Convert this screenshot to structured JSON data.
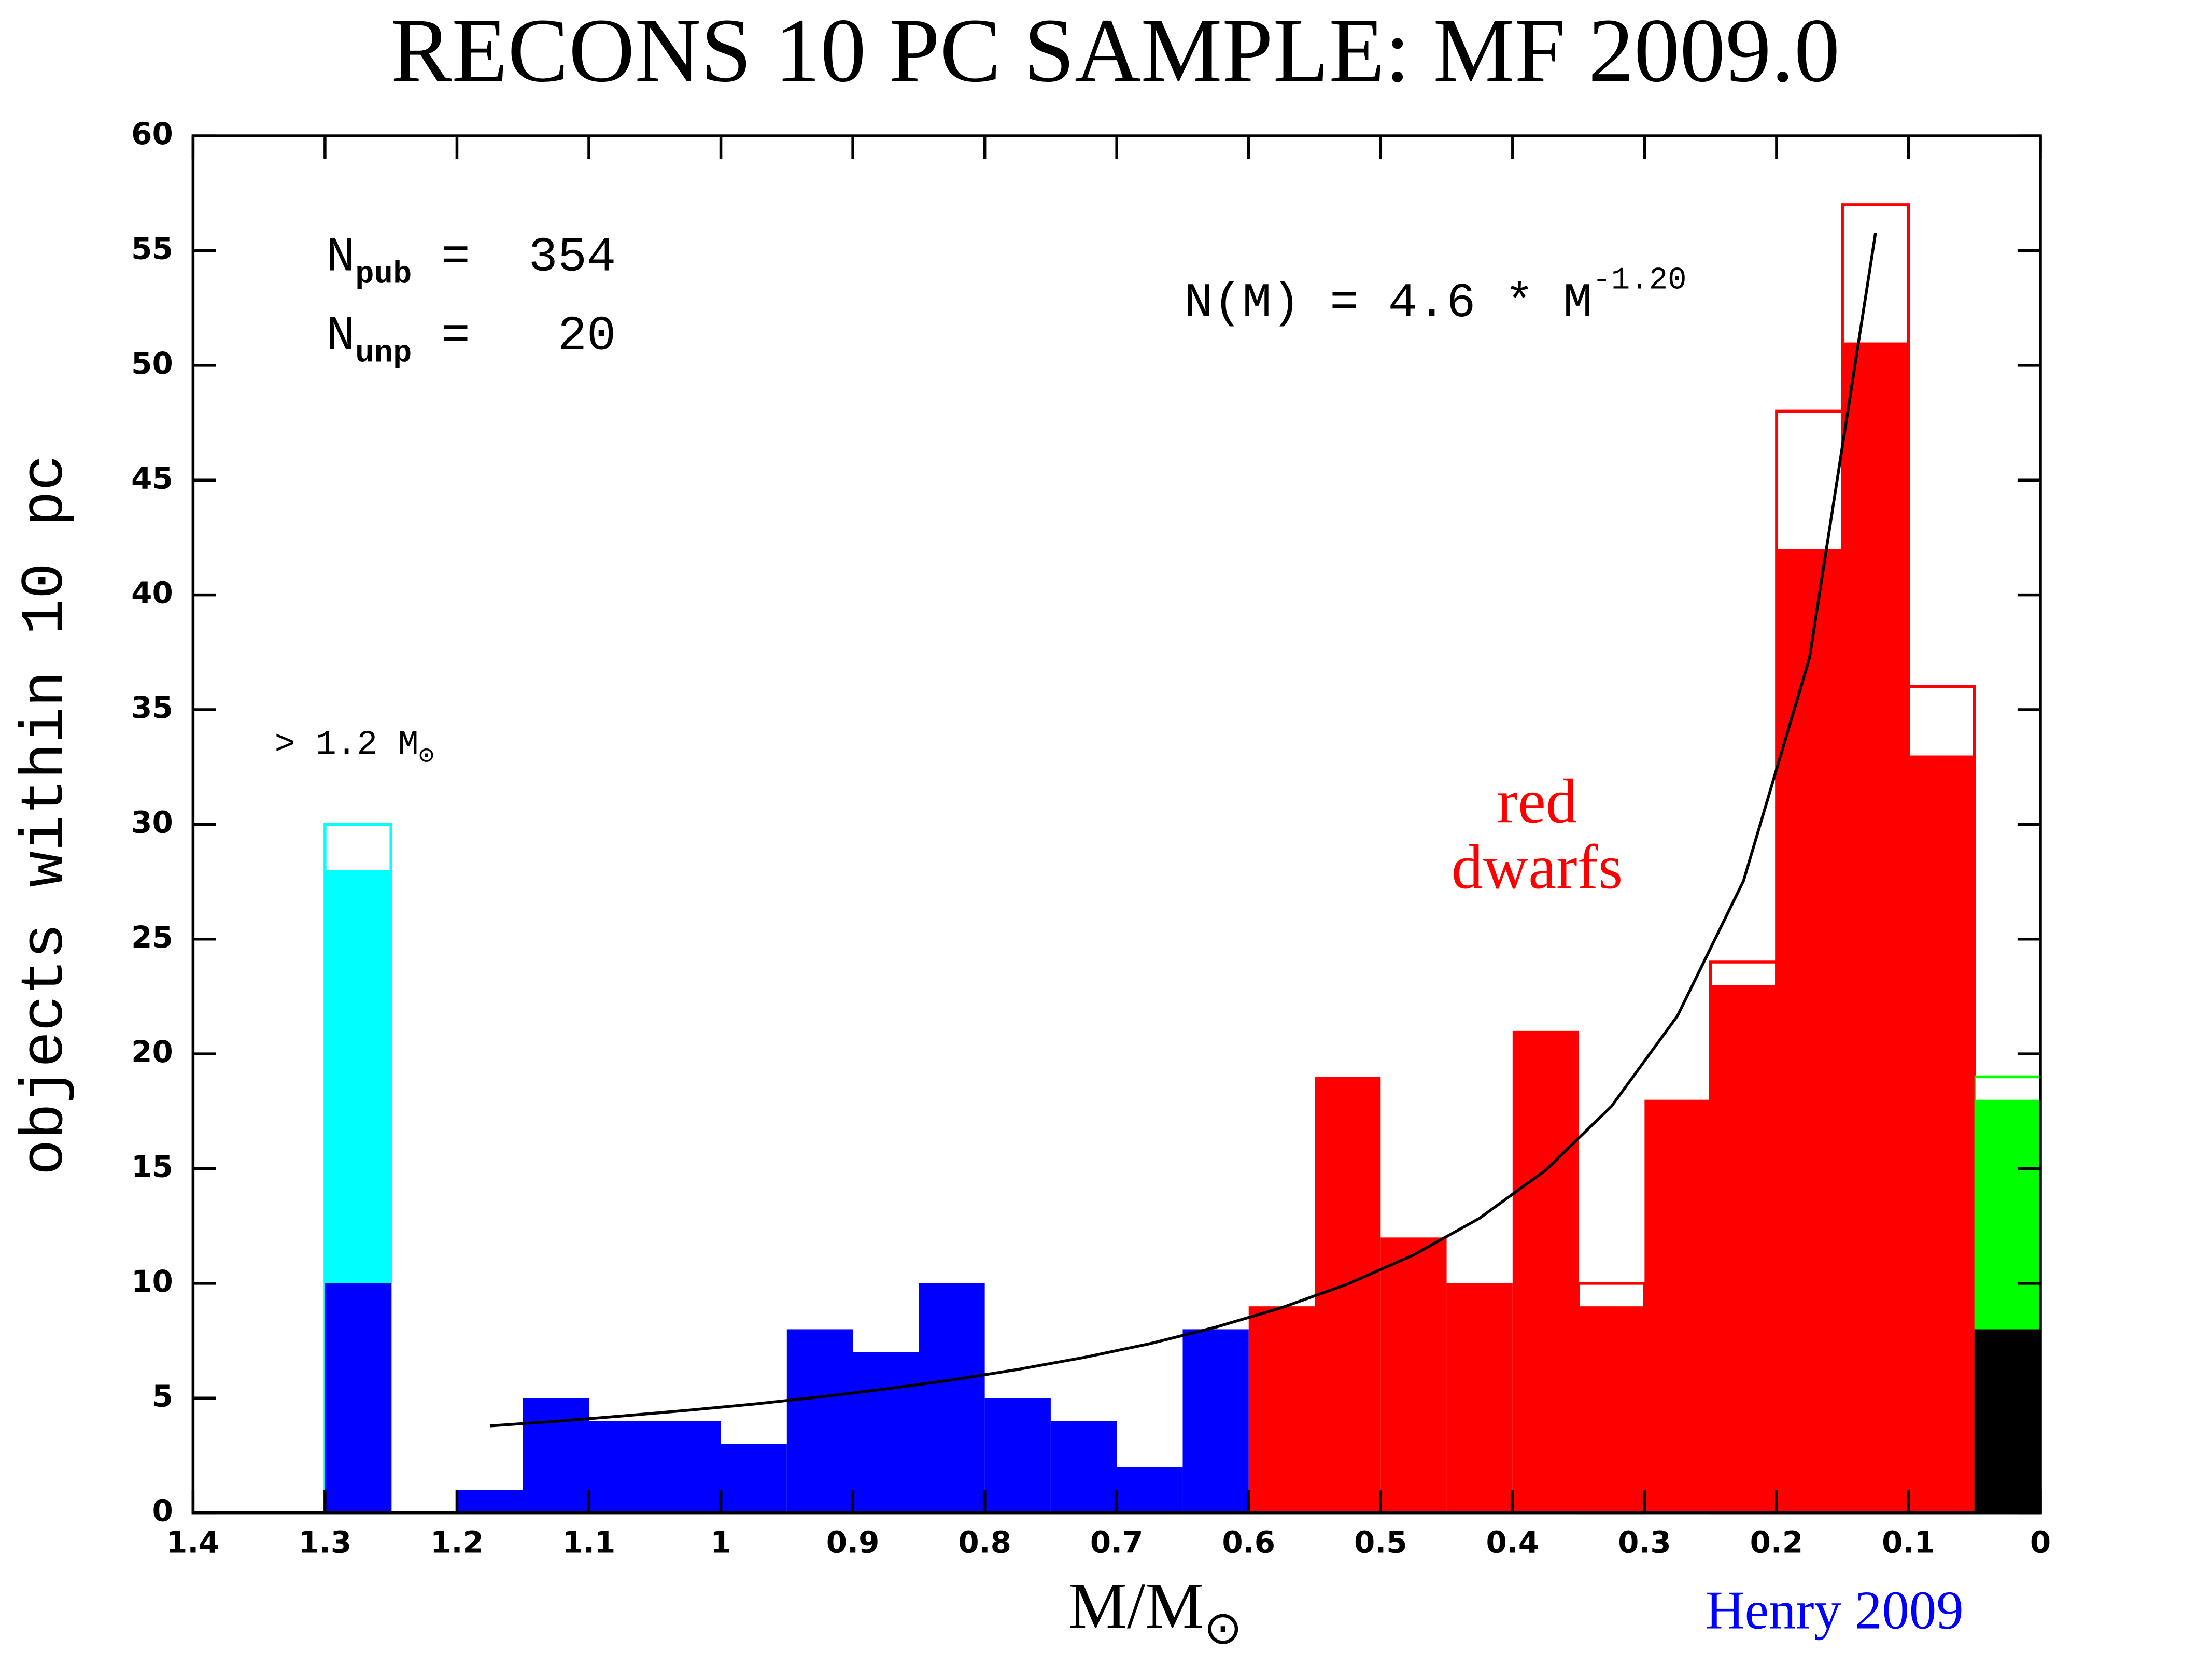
{
  "chart_data": {
    "type": "histogram",
    "title": "RECONS 10 PC SAMPLE: MF 2009.0",
    "y_label": "objects within 10 pc",
    "x_label": {
      "text": "M/M",
      "sub": "⊙"
    },
    "credit": "Henry 2009",
    "annotations": {
      "npub": {
        "symbol": "N",
        "sub": "pub",
        "text": " =  354"
      },
      "nunp": {
        "symbol": "N",
        "sub": "unp",
        "text": " =   20"
      },
      "massive": {
        "text": "> 1.2 M",
        "sub": "⊙"
      },
      "fit": {
        "text": "N(M) = 4.6 * M",
        "sup": "-1.20"
      },
      "red_dwarfs": [
        "red",
        "dwarfs"
      ]
    },
    "bins": [
      1.3,
      1.25,
      1.2,
      1.15,
      1.1,
      1.05,
      1.0,
      0.95,
      0.9,
      0.85,
      0.8,
      0.75,
      0.7,
      0.65,
      0.6,
      0.55,
      0.5,
      0.45,
      0.4,
      0.35,
      0.3,
      0.25,
      0.2,
      0.15,
      0.1,
      0.05,
      0
    ],
    "series": [
      {
        "color": "#0000ff",
        "values": [
          10,
          0,
          1,
          5,
          4,
          4,
          3,
          8,
          7,
          10,
          5,
          4,
          2,
          8,
          0,
          0,
          0,
          0,
          0,
          0,
          0,
          0,
          0,
          0,
          0,
          0
        ]
      },
      {
        "color": "#00ffff",
        "values": [
          18,
          0,
          0,
          0,
          0,
          0,
          0,
          0,
          0,
          0,
          0,
          0,
          0,
          0,
          0,
          0,
          0,
          0,
          0,
          0,
          0,
          0,
          0,
          0,
          0,
          0
        ]
      },
      {
        "color": "#ff0000",
        "values": [
          0,
          0,
          0,
          0,
          0,
          0,
          0,
          0,
          0,
          0,
          0,
          0,
          0,
          0,
          9,
          19,
          12,
          10,
          21,
          9,
          18,
          23,
          42,
          51,
          33,
          0
        ]
      },
      {
        "color": "#000000",
        "values": [
          0,
          0,
          0,
          0,
          0,
          0,
          0,
          0,
          0,
          0,
          0,
          0,
          0,
          0,
          0,
          0,
          0,
          0,
          0,
          0,
          0,
          0,
          0,
          0,
          0,
          8
        ]
      },
      {
        "color": "#00ff00",
        "values": [
          0,
          0,
          0,
          0,
          0,
          0,
          0,
          0,
          0,
          0,
          0,
          0,
          0,
          0,
          0,
          0,
          0,
          0,
          0,
          0,
          0,
          0,
          0,
          0,
          0,
          10
        ]
      }
    ],
    "outlines": [
      {
        "color": "#00ffff",
        "values": [
          30,
          null,
          null,
          null,
          null,
          null,
          null,
          null,
          null,
          null,
          null,
          null,
          null,
          null,
          null,
          null,
          null,
          null,
          null,
          null,
          null,
          null,
          null,
          null,
          null,
          null
        ]
      },
      {
        "color": "#ff0000",
        "values": [
          null,
          null,
          null,
          null,
          null,
          null,
          null,
          null,
          null,
          null,
          null,
          null,
          null,
          null,
          null,
          null,
          null,
          null,
          null,
          10,
          null,
          24,
          48,
          57,
          36,
          null
        ]
      },
      {
        "color": "#00ff00",
        "values": [
          null,
          null,
          null,
          null,
          null,
          null,
          null,
          null,
          null,
          null,
          null,
          null,
          null,
          null,
          null,
          null,
          null,
          null,
          null,
          null,
          null,
          null,
          null,
          null,
          null,
          19
        ]
      }
    ],
    "curve": {
      "color": "#000000",
      "x": [
        1.175,
        1.125,
        1.075,
        1.025,
        0.975,
        0.925,
        0.875,
        0.825,
        0.775,
        0.725,
        0.675,
        0.625,
        0.575,
        0.525,
        0.475,
        0.425,
        0.375,
        0.325,
        0.275,
        0.225,
        0.175,
        0.125
      ],
      "y": [
        3.79,
        3.99,
        4.22,
        4.47,
        4.74,
        5.05,
        5.4,
        5.79,
        6.25,
        6.77,
        7.37,
        8.09,
        8.94,
        9.97,
        11.24,
        12.84,
        14.93,
        17.72,
        21.66,
        27.54,
        37.25,
        55.76
      ]
    },
    "xlim": [
      1.4,
      0
    ],
    "xticks": [
      1.4,
      1.3,
      1.2,
      1.1,
      1,
      0.9,
      0.8,
      0.7,
      0.6,
      0.5,
      0.4,
      0.3,
      0.2,
      0.1,
      0
    ],
    "ylim": [
      0,
      60
    ],
    "yticks": [
      0,
      5,
      10,
      15,
      20,
      25,
      30,
      35,
      40,
      45,
      50,
      55,
      60
    ]
  }
}
